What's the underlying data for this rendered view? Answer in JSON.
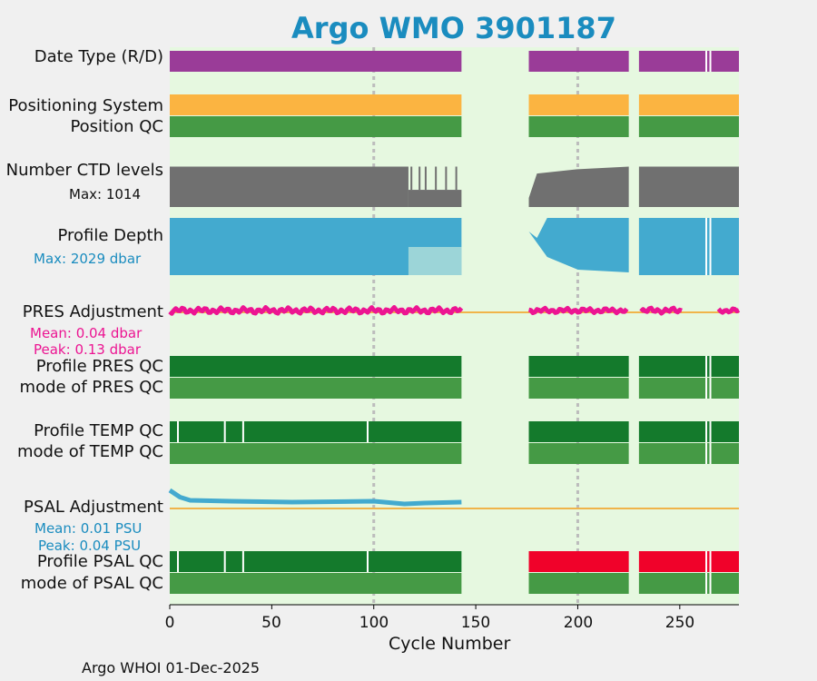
{
  "title": "Argo WMO 3901187",
  "footer": "Argo WHOI 01-Dec-2025",
  "colors": {
    "background": "#e6f8e0",
    "date_type": "#9a3c98",
    "positioning": "#fbb441",
    "qc_good": "#459a45",
    "qc_profile": "#147a2c",
    "ctd": "#707070",
    "depth": "#43aacf",
    "pres_adj": "#ec1592",
    "psal_adj": "#43aacf",
    "zero_line": "#f0b44a",
    "psal_bad": "#f0022a"
  },
  "rows": {
    "date_type": "Date Type (R/D)",
    "positioning": "Positioning System",
    "position_qc": "Position QC",
    "ctd_levels": "Number CTD levels",
    "ctd_max": "Max: 1014",
    "profile_depth": "Profile Depth",
    "depth_max": "Max: 2029 dbar",
    "pres_adj": "PRES Adjustment",
    "pres_mean": "Mean: 0.04 dbar",
    "pres_peak": "Peak: 0.13 dbar",
    "profile_pres_qc": "Profile PRES QC",
    "mode_pres_qc": "mode of PRES QC",
    "profile_temp_qc": "Profile TEMP QC",
    "mode_temp_qc": "mode of TEMP QC",
    "psal_adj": "PSAL Adjustment",
    "psal_mean": "Mean: 0.01 PSU",
    "psal_peak": "Peak: 0.04 PSU",
    "profile_psal_qc": "Profile PSAL QC",
    "mode_psal_qc": "mode of PSAL QC"
  },
  "chart_data": {
    "type": "bar",
    "title": "Argo WMO 3901187",
    "xlabel": "Cycle Number",
    "xlim": [
      0,
      279
    ],
    "xticks": [
      0,
      50,
      100,
      150,
      200,
      250
    ],
    "grid_x": [
      100,
      200
    ],
    "segments": [
      [
        0,
        143
      ],
      [
        176,
        225
      ],
      [
        230,
        279
      ]
    ],
    "date_type_gaps": [
      263,
      265
    ],
    "profile_qc_gaps": [
      4,
      27,
      36,
      97,
      263,
      265
    ],
    "ctd_levels": {
      "max": 1014,
      "segment1_level": 940,
      "segment1_drop_from": 117,
      "segment1_drop_level": 400,
      "segment2_start": 780,
      "segment2_end": 940,
      "segment3_level": 940
    },
    "profile_depth": {
      "max_dbar": 2029
    },
    "pres_adjustment": {
      "mean_dbar": 0.04,
      "peak_dbar": 0.13
    },
    "psal_adjustment": {
      "mean_psu": 0.01,
      "peak_psu": 0.04,
      "values": [
        [
          0,
          0.04
        ],
        [
          5,
          0.025
        ],
        [
          10,
          0.018
        ],
        [
          30,
          0.016
        ],
        [
          60,
          0.014
        ],
        [
          100,
          0.016
        ],
        [
          110,
          0.012
        ],
        [
          115,
          0.01
        ],
        [
          125,
          0.012
        ],
        [
          143,
          0.014
        ]
      ]
    },
    "psal_qc_bad_segments": [
      [
        176,
        225
      ],
      [
        230,
        279
      ]
    ]
  }
}
